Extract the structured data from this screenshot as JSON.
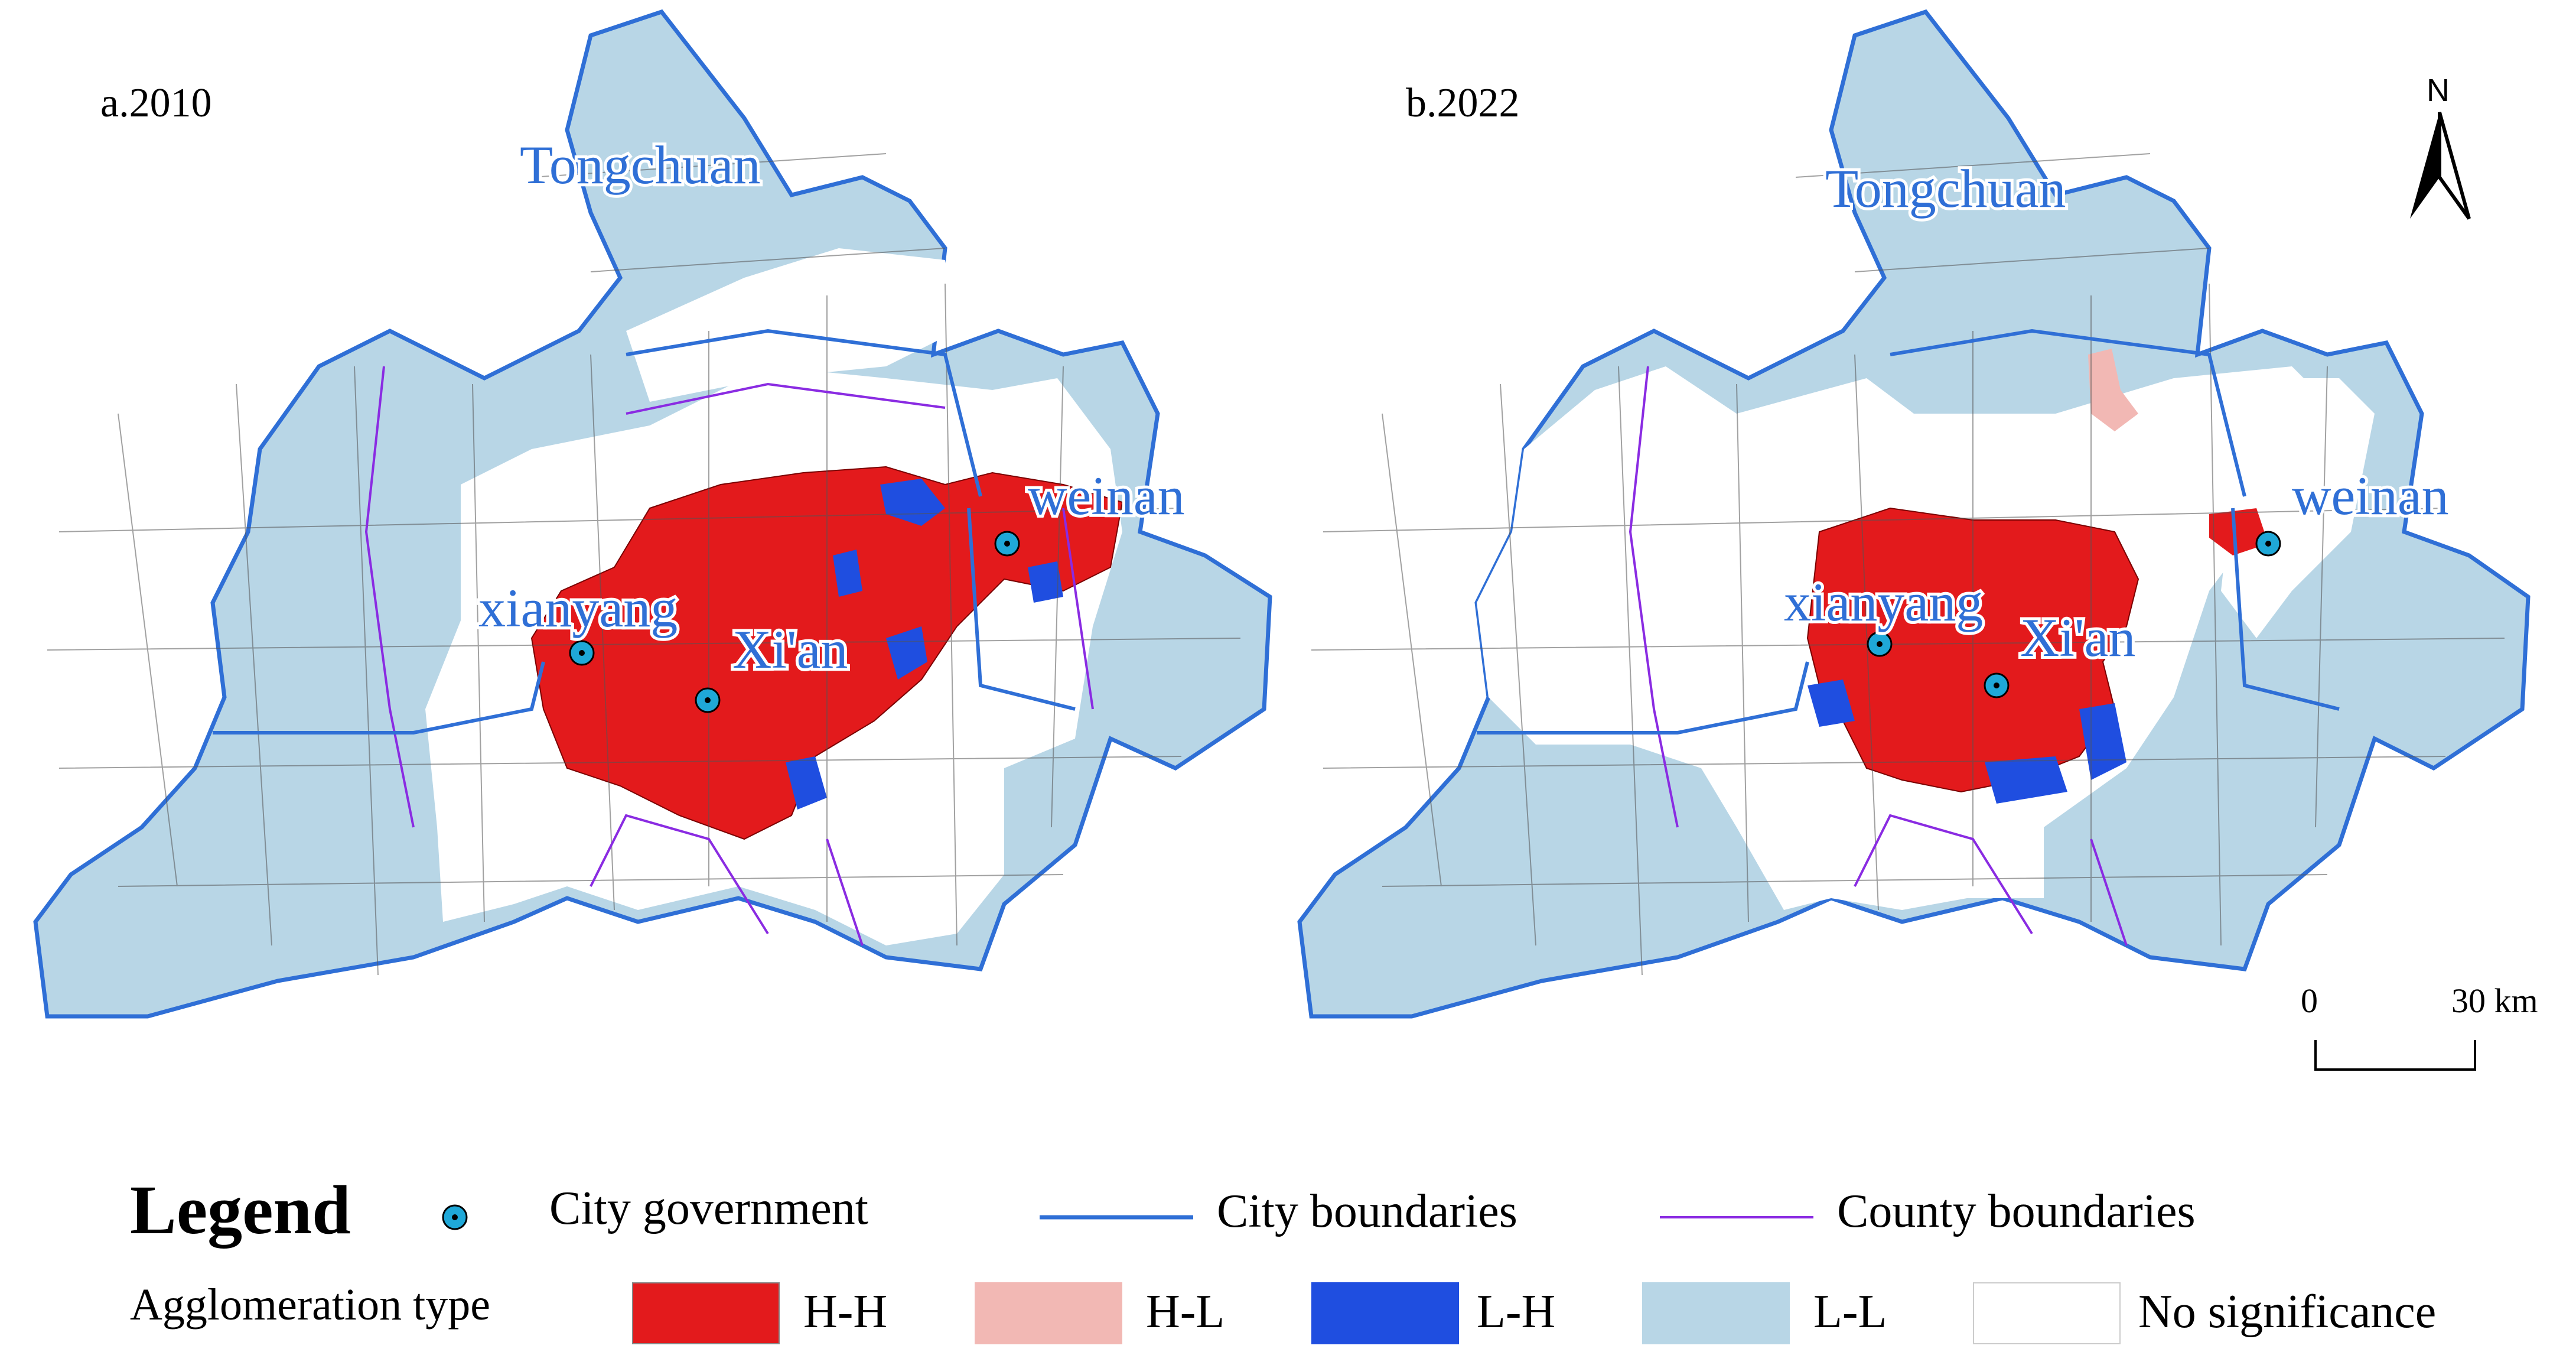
{
  "panels": [
    {
      "label": "a.2010",
      "cities": [
        {
          "name": "Tongchuan",
          "marker": false
        },
        {
          "name": "weinan",
          "marker": true
        },
        {
          "name": "xianyang",
          "marker": true
        },
        {
          "name": "Xi'an",
          "marker": true
        }
      ]
    },
    {
      "label": "b.2022",
      "cities": [
        {
          "name": "Tongchuan",
          "marker": false
        },
        {
          "name": "weinan",
          "marker": true
        },
        {
          "name": "xianyang",
          "marker": true
        },
        {
          "name": "Xi'an",
          "marker": true
        }
      ]
    }
  ],
  "compass": {
    "label": "N",
    "icon": "north-arrow-icon"
  },
  "scale_bar": {
    "start": "0",
    "end": "30 km"
  },
  "legend": {
    "title": "Legend",
    "city_government": "City government",
    "city_boundaries": "City boundaries",
    "county_boundaries": "County boundaries",
    "agglomeration_title": "Agglomeration type",
    "types": [
      {
        "label": "H-H",
        "color": "#e31a1c"
      },
      {
        "label": "H-L",
        "color": "#f2b8b4"
      },
      {
        "label": "L-H",
        "color": "#1f4ee0"
      },
      {
        "label": "L-L",
        "color": "#b8d6e6"
      },
      {
        "label": "No significance",
        "color": "#ffffff"
      }
    ]
  },
  "colors": {
    "city_boundary": "#2f6fd6",
    "county_boundary": "#8a2be2",
    "city_marker": "#1fa8d8"
  }
}
